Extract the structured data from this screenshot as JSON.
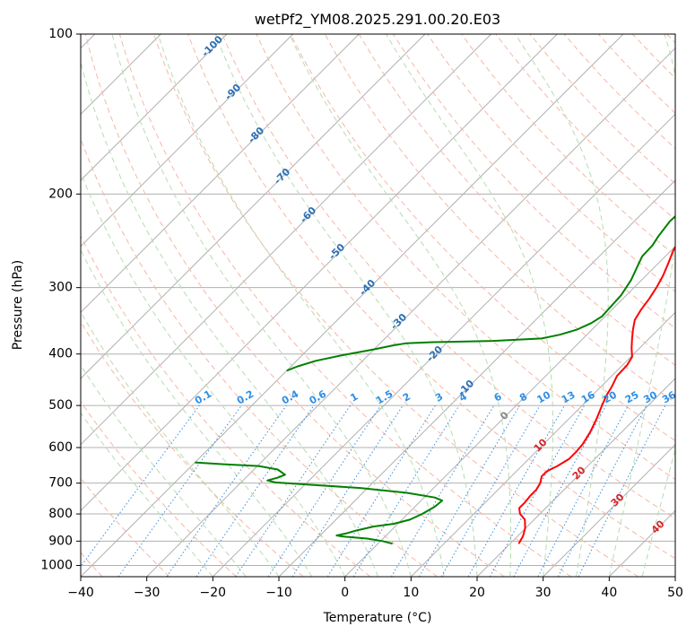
{
  "chart_data": {
    "type": "skew-t",
    "title": "wetPf2_YM08.2025.291.00.20.E03",
    "xlabel": "Temperature (°C)",
    "ylabel": "Pressure (hPa)",
    "xlim": [
      -40,
      50
    ],
    "ylim_hpa": [
      1050,
      100
    ],
    "x_ticks": [
      "−40",
      "−30",
      "−20",
      "−10",
      "0",
      "10",
      "20",
      "30",
      "40",
      "50"
    ],
    "x_tick_values": [
      -40,
      -30,
      -20,
      -10,
      0,
      10,
      20,
      30,
      40,
      50
    ],
    "y_ticks": [
      "100",
      "200",
      "300",
      "400",
      "500",
      "600",
      "700",
      "800",
      "900",
      "1000"
    ],
    "y_tick_values": [
      100,
      200,
      300,
      400,
      500,
      600,
      700,
      800,
      900,
      1000
    ],
    "dry_adiabat_labels": [
      "-100",
      "-90",
      "-80",
      "-70",
      "-60",
      "-50",
      "-40",
      "-30",
      "-20",
      "-10"
    ],
    "mixing_ratio_labels": [
      "0.1",
      "0.2",
      "0.4",
      "0.6",
      "1",
      "1.5",
      "2",
      "3",
      "4",
      "6",
      "8",
      "10",
      "13",
      "16",
      "20",
      "25",
      "30",
      "36"
    ],
    "moist_adiabat_labels": [
      "0",
      "10",
      "20",
      "30",
      "40"
    ],
    "series": [
      {
        "name": "Temperature",
        "color": "#ff0000",
        "points": [
          [
            910,
            21.3
          ],
          [
            880,
            20.8
          ],
          [
            850,
            19.9
          ],
          [
            820,
            18.6
          ],
          [
            800,
            17.0
          ],
          [
            780,
            16.0
          ],
          [
            760,
            16.0
          ],
          [
            740,
            15.8
          ],
          [
            720,
            15.8
          ],
          [
            700,
            15.4
          ],
          [
            680,
            14.6
          ],
          [
            665,
            14.6
          ],
          [
            650,
            15.4
          ],
          [
            630,
            16.1
          ],
          [
            610,
            16.1
          ],
          [
            590,
            15.9
          ],
          [
            560,
            15.2
          ],
          [
            530,
            14.2
          ],
          [
            500,
            13.0
          ],
          [
            480,
            12.2
          ],
          [
            460,
            11.6
          ],
          [
            440,
            10.8
          ],
          [
            420,
            10.7
          ],
          [
            405,
            10.2
          ],
          [
            390,
            8.8
          ],
          [
            375,
            7.5
          ],
          [
            360,
            6.2
          ],
          [
            345,
            5.0
          ],
          [
            330,
            4.4
          ],
          [
            315,
            4.0
          ],
          [
            300,
            3.4
          ],
          [
            285,
            2.6
          ],
          [
            270,
            1.5
          ],
          [
            255,
            0.3
          ],
          [
            240,
            -0.6
          ],
          [
            225,
            -1.4
          ],
          [
            212,
            -1.7
          ],
          [
            200,
            -1.6
          ],
          [
            192,
            -0.7
          ],
          [
            184,
            0.5
          ],
          [
            176,
            1.6
          ],
          [
            168,
            2.8
          ],
          [
            160,
            4.1
          ],
          [
            152,
            5.9
          ],
          [
            145,
            8.0
          ],
          [
            138,
            9.0
          ],
          [
            130,
            9.5
          ],
          [
            120,
            10.4
          ],
          [
            112,
            11.8
          ],
          [
            106,
            13.0
          ],
          [
            100,
            14.2
          ]
        ]
      },
      {
        "name": "Dewpoint",
        "color": "#008000",
        "points": [
          [
            910,
            2.2
          ],
          [
            900,
            0.3
          ],
          [
            890,
            -2.4
          ],
          [
            882,
            -6.5
          ],
          [
            878,
            -7.5
          ],
          [
            870,
            -6.3
          ],
          [
            860,
            -5.3
          ],
          [
            845,
            -3.3
          ],
          [
            835,
            -0.6
          ],
          [
            820,
            1.2
          ],
          [
            800,
            2.2
          ],
          [
            775,
            3.0
          ],
          [
            755,
            3.2
          ],
          [
            745,
            1.6
          ],
          [
            730,
            -3.3
          ],
          [
            715,
            -11.1
          ],
          [
            705,
            -19.1
          ],
          [
            698,
            -24.8
          ],
          [
            692,
            -26.3
          ],
          [
            684,
            -25.2
          ],
          [
            675,
            -24.5
          ],
          [
            660,
            -26.4
          ],
          [
            650,
            -29.8
          ],
          [
            645,
            -35.4
          ],
          [
            640,
            -40.0
          ]
        ]
      },
      {
        "name": "Dewpoint (upper)",
        "color": "#008000",
        "points": [
          [
            430,
            -40.0
          ],
          [
            422,
            -39.0
          ],
          [
            412,
            -37.1
          ],
          [
            402,
            -33.9
          ],
          [
            392,
            -30.0
          ],
          [
            385,
            -27.6
          ],
          [
            382,
            -26.1
          ],
          [
            380,
            -22.2
          ],
          [
            378,
            -13.3
          ],
          [
            374,
            -6.3
          ],
          [
            368,
            -4.1
          ],
          [
            360,
            -2.3
          ],
          [
            350,
            -1.1
          ],
          [
            340,
            -0.5
          ],
          [
            330,
            -0.6
          ],
          [
            310,
            -0.8
          ],
          [
            290,
            -1.6
          ],
          [
            275,
            -2.6
          ],
          [
            262,
            -3.5
          ],
          [
            250,
            -3.6
          ],
          [
            240,
            -4.1
          ],
          [
            225,
            -4.6
          ],
          [
            210,
            -4.4
          ],
          [
            200,
            -4.2
          ],
          [
            193,
            -3.8
          ],
          [
            186,
            -3.9
          ],
          [
            180,
            -4.2
          ],
          [
            174,
            -4.5
          ],
          [
            168,
            -4.7
          ],
          [
            160,
            -4.9
          ],
          [
            155,
            -4.5
          ],
          [
            150,
            -3.3
          ],
          [
            145,
            -2.8
          ],
          [
            140,
            -2.8
          ],
          [
            135,
            -2.5
          ],
          [
            130,
            -2.2
          ],
          [
            125,
            -1.5
          ],
          [
            118,
            -1.2
          ],
          [
            110,
            -0.7
          ],
          [
            103,
            0.4
          ],
          [
            100,
            0.5
          ]
        ]
      }
    ]
  }
}
